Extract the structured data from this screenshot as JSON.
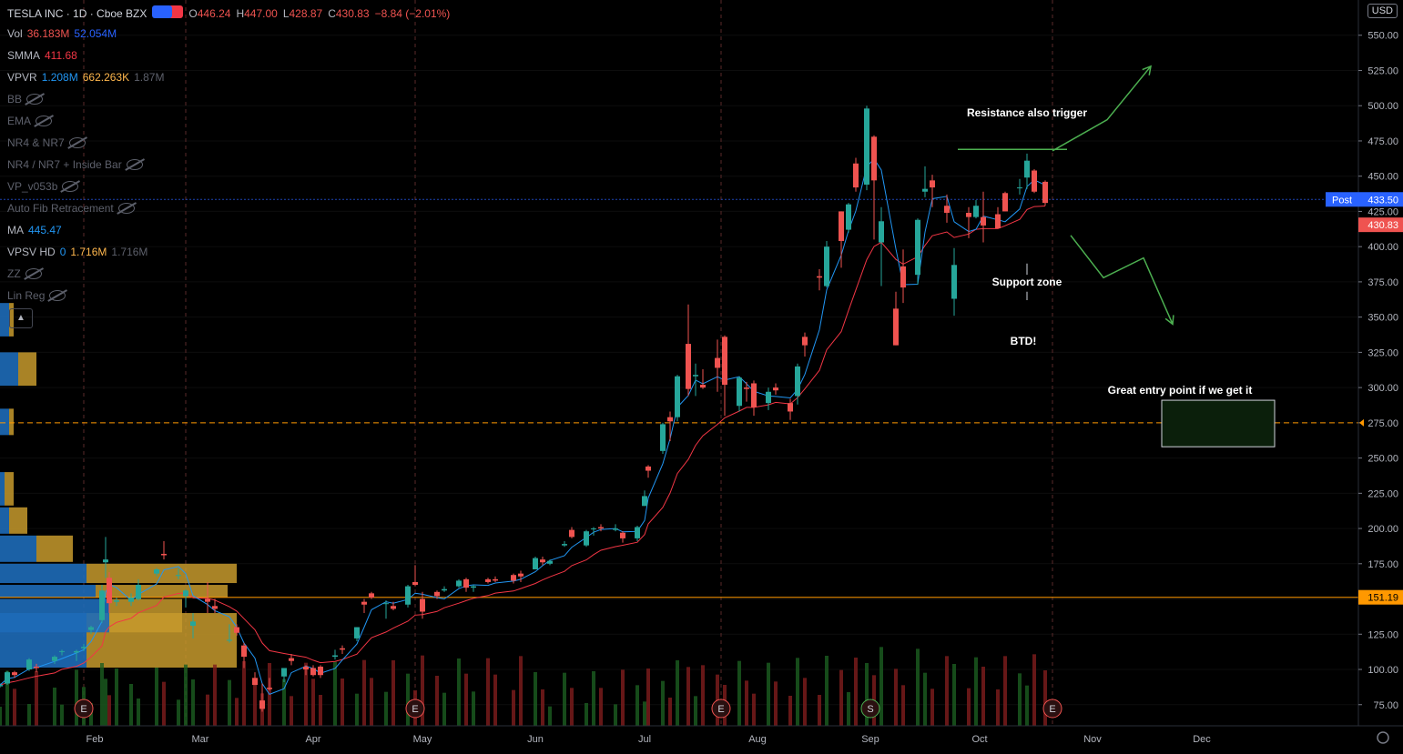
{
  "header": {
    "symbol": "TESLA INC · 1D · Cboe BZX",
    "open_label": "O",
    "open": "446.24",
    "high_label": "H",
    "high": "447.00",
    "low_label": "L",
    "low": "428.87",
    "close_label": "C",
    "close": "430.83",
    "change": "−8.84 (−2.01%)"
  },
  "indicators": [
    {
      "name": "Vol",
      "values": [
        "36.183M",
        "52.054M"
      ],
      "colors": [
        "#ef5350",
        "#2962ff"
      ]
    },
    {
      "name": "SMMA",
      "values": [
        "411.68"
      ],
      "colors": [
        "#f23645"
      ]
    },
    {
      "name": "VPVR",
      "values": [
        "1.208M",
        "662.263K",
        "1.87M"
      ],
      "colors": [
        "#2196f3",
        "#ffb74d",
        "#5d606b"
      ]
    },
    {
      "name": "BB",
      "values": [],
      "hidden": true
    },
    {
      "name": "EMA",
      "values": [],
      "hidden": true
    },
    {
      "name": "NR4 & NR7",
      "values": [],
      "hidden": true
    },
    {
      "name": "NR4 / NR7 + Inside Bar",
      "values": [],
      "hidden": true
    },
    {
      "name": "VP_v053b",
      "values": [],
      "hidden": true
    },
    {
      "name": "Auto Fib Retracement",
      "values": [],
      "hidden": true
    },
    {
      "name": "MA",
      "values": [
        "445.47"
      ],
      "colors": [
        "#2196f3"
      ]
    },
    {
      "name": "VPSV HD",
      "values": [
        "0",
        "1.716M",
        "1.716M"
      ],
      "colors": [
        "#2196f3",
        "#ffb74d",
        "#5d606b"
      ]
    },
    {
      "name": "ZZ",
      "values": [],
      "hidden": true
    },
    {
      "name": "Lin Reg",
      "values": [],
      "hidden": true
    }
  ],
  "currency_button": "USD",
  "price_labels": {
    "post_tag": "Post",
    "post_price": "433.50",
    "last_price": "430.83",
    "level_151": "151.19",
    "level_275": "275.00"
  },
  "annotations": {
    "resistance": "Resistance also trigger",
    "support": "Support zone",
    "btd": "BTD!",
    "entry": "Great entry point if we get it"
  },
  "event_markers": [
    "E",
    "E",
    "E",
    "S",
    "E"
  ],
  "colors": {
    "up": "#26a69a",
    "down": "#ef5350",
    "smma": "#f23645",
    "ma": "#2196f3",
    "annotation_green": "#4caf50",
    "level_orange": "#ff9800"
  },
  "chart_data": {
    "type": "candlestick",
    "title": "TESLA INC · 1D · Cboe BZX",
    "ylim": [
      60,
      575
    ],
    "y_ticks": [
      75,
      100,
      125,
      150,
      175,
      200,
      225,
      250,
      275,
      300,
      325,
      350,
      375,
      400,
      425,
      450,
      475,
      500,
      525,
      550
    ],
    "x_ticks": [
      "Feb",
      "Mar",
      "Apr",
      "May",
      "Jun",
      "Jul",
      "Aug",
      "Sep",
      "Oct",
      "Nov",
      "Dec"
    ],
    "x_tick_dates": [
      "2020-02-01",
      "2020-03-01",
      "2020-04-01",
      "2020-05-01",
      "2020-06-01",
      "2020-07-01",
      "2020-08-01",
      "2020-09-01",
      "2020-10-01",
      "2020-11-01",
      "2020-12-01"
    ],
    "x_range": [
      "2020-01-06",
      "2020-12-31"
    ],
    "ohlc": [
      [
        "2020-01-06",
        88,
        90,
        87,
        89
      ],
      [
        "2020-01-08",
        90,
        99,
        89,
        98
      ],
      [
        "2020-01-10",
        98,
        99,
        94,
        96
      ],
      [
        "2020-01-14",
        100,
        108,
        99,
        107
      ],
      [
        "2020-01-16",
        102,
        104,
        98,
        101
      ],
      [
        "2020-01-21",
        106,
        110,
        104,
        109
      ],
      [
        "2020-01-23",
        113,
        114,
        110,
        113
      ],
      [
        "2020-01-27",
        112,
        114,
        106,
        113
      ],
      [
        "2020-01-29",
        115,
        118,
        113,
        116
      ],
      [
        "2020-01-31",
        128,
        131,
        125,
        130
      ],
      [
        "2020-02-03",
        135,
        160,
        133,
        156
      ],
      [
        "2020-02-04",
        176,
        194,
        165,
        178
      ],
      [
        "2020-02-05",
        165,
        169,
        140,
        147
      ],
      [
        "2020-02-07",
        148,
        151,
        145,
        149
      ],
      [
        "2020-02-11",
        148,
        154,
        145,
        151
      ],
      [
        "2020-02-13",
        150,
        164,
        149,
        160
      ],
      [
        "2020-02-18",
        168,
        172,
        166,
        171
      ],
      [
        "2020-02-20",
        182,
        191,
        178,
        181
      ],
      [
        "2020-02-24",
        167,
        172,
        164,
        167
      ],
      [
        "2020-02-26",
        152,
        157,
        144,
        156
      ],
      [
        "2020-02-28",
        131,
        140,
        122,
        134
      ],
      [
        "2020-03-03",
        150,
        162,
        140,
        148
      ],
      [
        "2020-03-05",
        145,
        150,
        140,
        143
      ],
      [
        "2020-03-09",
        121,
        132,
        119,
        121
      ],
      [
        "2020-03-11",
        130,
        132,
        124,
        126
      ],
      [
        "2020-03-13",
        117,
        119,
        101,
        109
      ],
      [
        "2020-03-16",
        94,
        98,
        89,
        89
      ],
      [
        "2020-03-18",
        78,
        90,
        70,
        72
      ],
      [
        "2020-03-20",
        87,
        94,
        85,
        86
      ],
      [
        "2020-03-24",
        95,
        101,
        91,
        101
      ],
      [
        "2020-03-26",
        108,
        111,
        103,
        106
      ],
      [
        "2020-03-30",
        102,
        103,
        96,
        100
      ],
      [
        "2020-04-01",
        101,
        103,
        95,
        96
      ],
      [
        "2020-04-03",
        102,
        103,
        94,
        96
      ],
      [
        "2020-04-07",
        109,
        114,
        107,
        110
      ],
      [
        "2020-04-09",
        115,
        117,
        111,
        114
      ],
      [
        "2020-04-13",
        122,
        130,
        120,
        130
      ],
      [
        "2020-04-15",
        148,
        150,
        140,
        146
      ],
      [
        "2020-04-17",
        154,
        155,
        150,
        151
      ],
      [
        "2020-04-21",
        147,
        149,
        136,
        147
      ],
      [
        "2020-04-23",
        145,
        148,
        142,
        143
      ],
      [
        "2020-04-27",
        146,
        160,
        144,
        159
      ],
      [
        "2020-04-29",
        162,
        174,
        159,
        160
      ],
      [
        "2020-05-01",
        150,
        155,
        136,
        141
      ],
      [
        "2020-05-05",
        155,
        156,
        150,
        152
      ],
      [
        "2020-05-07",
        156,
        159,
        155,
        157
      ],
      [
        "2020-05-11",
        159,
        164,
        158,
        163
      ],
      [
        "2020-05-13",
        164,
        165,
        155,
        158
      ],
      [
        "2020-05-15",
        158,
        160,
        155,
        159
      ],
      [
        "2020-05-19",
        164,
        165,
        161,
        162
      ],
      [
        "2020-05-21",
        164,
        166,
        162,
        163
      ],
      [
        "2020-05-26",
        167,
        168,
        161,
        163
      ],
      [
        "2020-05-28",
        168,
        170,
        162,
        166
      ],
      [
        "2020-06-01",
        171,
        180,
        171,
        179
      ],
      [
        "2020-06-03",
        178,
        180,
        174,
        176
      ],
      [
        "2020-06-05",
        175,
        178,
        174,
        177
      ],
      [
        "2020-06-09",
        188,
        191,
        187,
        189
      ],
      [
        "2020-06-11",
        199,
        201,
        193,
        194
      ],
      [
        "2020-06-15",
        188,
        199,
        187,
        198
      ],
      [
        "2020-06-17",
        200,
        201,
        195,
        200
      ],
      [
        "2020-06-19",
        201,
        203,
        198,
        200
      ],
      [
        "2020-06-23",
        199,
        203,
        198,
        200
      ],
      [
        "2020-06-25",
        197,
        198,
        190,
        193
      ],
      [
        "2020-06-29",
        193,
        202,
        191,
        201
      ],
      [
        "2020-07-01",
        216,
        227,
        216,
        223
      ],
      [
        "2020-07-02",
        244,
        245,
        236,
        241
      ],
      [
        "2020-07-06",
        255,
        275,
        253,
        274
      ],
      [
        "2020-07-08",
        279,
        283,
        262,
        276
      ],
      [
        "2020-07-10",
        279,
        309,
        276,
        308
      ],
      [
        "2020-07-13",
        331,
        359,
        294,
        299
      ],
      [
        "2020-07-15",
        308,
        317,
        294,
        309
      ],
      [
        "2020-07-17",
        302,
        313,
        299,
        300
      ],
      [
        "2020-07-21",
        321,
        334,
        297,
        314
      ],
      [
        "2020-07-23",
        336,
        337,
        280,
        302
      ],
      [
        "2020-07-27",
        287,
        308,
        283,
        307
      ],
      [
        "2020-07-29",
        300,
        304,
        290,
        299
      ],
      [
        "2020-07-31",
        303,
        305,
        280,
        286
      ],
      [
        "2020-08-04",
        289,
        300,
        284,
        297
      ],
      [
        "2020-08-06",
        300,
        303,
        295,
        298
      ],
      [
        "2020-08-10",
        289,
        292,
        277,
        283
      ],
      [
        "2020-08-12",
        294,
        317,
        288,
        315
      ],
      [
        "2020-08-14",
        336,
        339,
        322,
        330
      ],
      [
        "2020-08-18",
        379,
        384,
        369,
        378
      ],
      [
        "2020-08-20",
        372,
        404,
        371,
        400
      ],
      [
        "2020-08-24",
        425,
        425,
        385,
        404
      ],
      [
        "2020-08-26",
        412,
        431,
        410,
        430
      ],
      [
        "2020-08-28",
        459,
        463,
        439,
        442
      ],
      [
        "2020-08-31",
        444,
        500,
        440,
        498
      ],
      [
        "2020-09-02",
        478,
        479,
        405,
        447
      ],
      [
        "2020-09-04",
        403,
        428,
        372,
        418
      ],
      [
        "2020-09-08",
        356,
        368,
        330,
        330
      ],
      [
        "2020-09-10",
        386,
        398,
        360,
        371
      ],
      [
        "2020-09-14",
        380,
        420,
        373,
        419
      ],
      [
        "2020-09-16",
        439,
        457,
        435,
        441
      ],
      [
        "2020-09-18",
        447,
        451,
        428,
        442
      ],
      [
        "2020-09-22",
        429,
        437,
        417,
        424
      ],
      [
        "2020-09-24",
        363,
        399,
        351,
        387
      ],
      [
        "2020-09-28",
        424,
        428,
        406,
        421
      ],
      [
        "2020-09-30",
        421,
        433,
        420,
        429
      ],
      [
        "2020-10-02",
        421,
        439,
        403,
        415
      ],
      [
        "2020-10-06",
        423,
        428,
        413,
        413
      ],
      [
        "2020-10-08",
        438,
        439,
        425,
        425
      ],
      [
        "2020-10-12",
        442,
        448,
        437,
        442
      ],
      [
        "2020-10-14",
        449,
        466,
        441,
        461
      ],
      [
        "2020-10-16",
        454,
        455,
        438,
        439
      ],
      [
        "2020-10-19",
        446,
        447,
        429,
        431
      ]
    ],
    "levels": [
      151.19,
      275
    ],
    "forecast_paths": [
      {
        "name": "up",
        "points": [
          [
            "2020-10-21",
            468
          ],
          [
            "2020-11-05",
            490
          ],
          [
            "2020-11-17",
            528
          ]
        ]
      },
      {
        "name": "down",
        "points": [
          [
            "2020-10-26",
            408
          ],
          [
            "2020-11-04",
            378
          ],
          [
            "2020-11-15",
            392
          ],
          [
            "2020-11-23",
            345
          ]
        ]
      }
    ],
    "resistance_line": {
      "from": "2020-09-25",
      "to": "2020-10-25",
      "price": 469
    },
    "entry_zone": {
      "from": "2020-11-20",
      "to": "2020-12-21",
      "low": 258,
      "high": 291
    }
  }
}
